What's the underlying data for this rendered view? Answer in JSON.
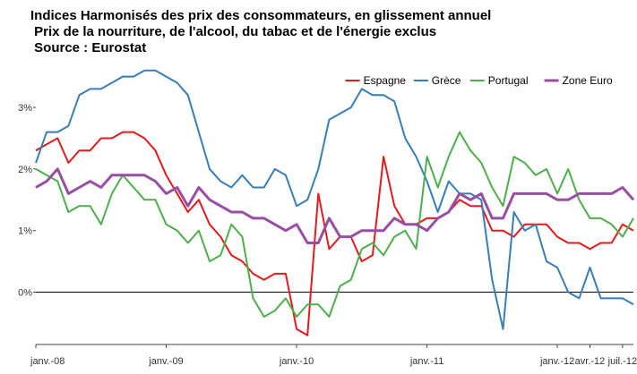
{
  "chart_data": {
    "type": "line",
    "title": "Indices Harmonisés des prix des consommateurs, en glissement annuel",
    "subtitle": " Prix de la nourriture, de l'alcool, du tabac et de l'énergie exclus",
    "source": " Source : Eurostat",
    "categories": [
      "janv.-08",
      null,
      null,
      null,
      null,
      null,
      null,
      null,
      null,
      null,
      null,
      null,
      "janv.-09",
      null,
      null,
      null,
      null,
      null,
      null,
      null,
      null,
      null,
      null,
      null,
      "janv.-10",
      null,
      null,
      null,
      null,
      null,
      null,
      null,
      null,
      null,
      null,
      null,
      "janv.-11",
      null,
      null,
      null,
      null,
      null,
      null,
      null,
      null,
      null,
      null,
      null,
      "janv.-12",
      null,
      null,
      "avr.-12",
      null,
      null,
      "juil.-12",
      null
    ],
    "series": [
      {
        "name": "Espagne",
        "color": "#e41a1c",
        "values": [
          2.3,
          2.4,
          2.5,
          2.1,
          2.3,
          2.3,
          2.5,
          2.5,
          2.6,
          2.6,
          2.5,
          2.3,
          1.9,
          1.6,
          1.3,
          1.5,
          1.1,
          0.9,
          0.6,
          0.5,
          0.3,
          0.2,
          0.3,
          0.3,
          -0.6,
          -0.7,
          1.6,
          0.7,
          0.9,
          0.9,
          0.5,
          0.6,
          2.2,
          1.4,
          1.1,
          1.1,
          1.2,
          1.2,
          1.3,
          1.5,
          1.4,
          1.4,
          1.0,
          1.0,
          0.9,
          1.1,
          1.1,
          1.1,
          0.9,
          0.8,
          0.8,
          0.7,
          0.8,
          0.8,
          1.1,
          1.0
        ]
      },
      {
        "name": "Grèce",
        "color": "#377eb8",
        "values": [
          2.1,
          2.6,
          2.6,
          2.7,
          3.2,
          3.3,
          3.3,
          3.4,
          3.5,
          3.5,
          3.6,
          3.6,
          3.5,
          3.4,
          3.2,
          2.6,
          2.0,
          1.8,
          1.7,
          1.9,
          1.7,
          1.7,
          2.0,
          1.9,
          1.4,
          1.5,
          2.0,
          2.8,
          2.9,
          3.0,
          3.3,
          3.2,
          3.2,
          3.1,
          2.5,
          2.2,
          1.8,
          1.3,
          1.8,
          1.6,
          1.6,
          1.5,
          0.2,
          -0.6,
          1.3,
          1.0,
          1.1,
          0.5,
          0.4,
          0.0,
          -0.1,
          0.4,
          -0.1,
          -0.1,
          -0.1,
          -0.2
        ]
      },
      {
        "name": "Portugal",
        "color": "#4daf4a",
        "values": [
          2.0,
          1.9,
          1.8,
          1.3,
          1.4,
          1.4,
          1.1,
          1.6,
          1.9,
          1.7,
          1.5,
          1.5,
          1.1,
          1.0,
          0.8,
          1.0,
          0.5,
          0.6,
          1.1,
          0.9,
          -0.1,
          -0.4,
          -0.3,
          -0.1,
          -0.4,
          -0.2,
          -0.2,
          -0.4,
          0.1,
          0.2,
          0.7,
          0.8,
          0.6,
          0.9,
          1.0,
          0.7,
          2.2,
          1.7,
          2.2,
          2.6,
          2.3,
          2.1,
          1.7,
          1.4,
          2.2,
          2.1,
          1.9,
          2.0,
          1.6,
          2.0,
          1.5,
          1.2,
          1.2,
          1.1,
          0.9,
          1.2
        ]
      },
      {
        "name": "Zone Euro",
        "color": "#984ea3",
        "values": [
          1.7,
          1.8,
          2.0,
          1.6,
          1.7,
          1.8,
          1.7,
          1.9,
          1.9,
          1.9,
          1.9,
          1.8,
          1.6,
          1.7,
          1.4,
          1.7,
          1.5,
          1.4,
          1.3,
          1.3,
          1.2,
          1.2,
          1.1,
          1.0,
          1.1,
          0.8,
          0.8,
          1.2,
          0.9,
          0.9,
          1.0,
          1.0,
          1.0,
          1.2,
          1.1,
          1.1,
          1.0,
          1.2,
          1.3,
          1.6,
          1.5,
          1.6,
          1.2,
          1.2,
          1.6,
          1.6,
          1.6,
          1.6,
          1.5,
          1.5,
          1.6,
          1.6,
          1.6,
          1.6,
          1.7,
          1.5
        ]
      }
    ],
    "ylim": [
      -0.85,
      3.8
    ],
    "yticks": [
      {
        "value": 0,
        "label": "0%"
      },
      {
        "value": 1,
        "label": "1%"
      },
      {
        "value": 2,
        "label": "2%"
      },
      {
        "value": 3,
        "label": "3%"
      }
    ],
    "zero_line": true,
    "grid": false,
    "legend": "top-right"
  }
}
